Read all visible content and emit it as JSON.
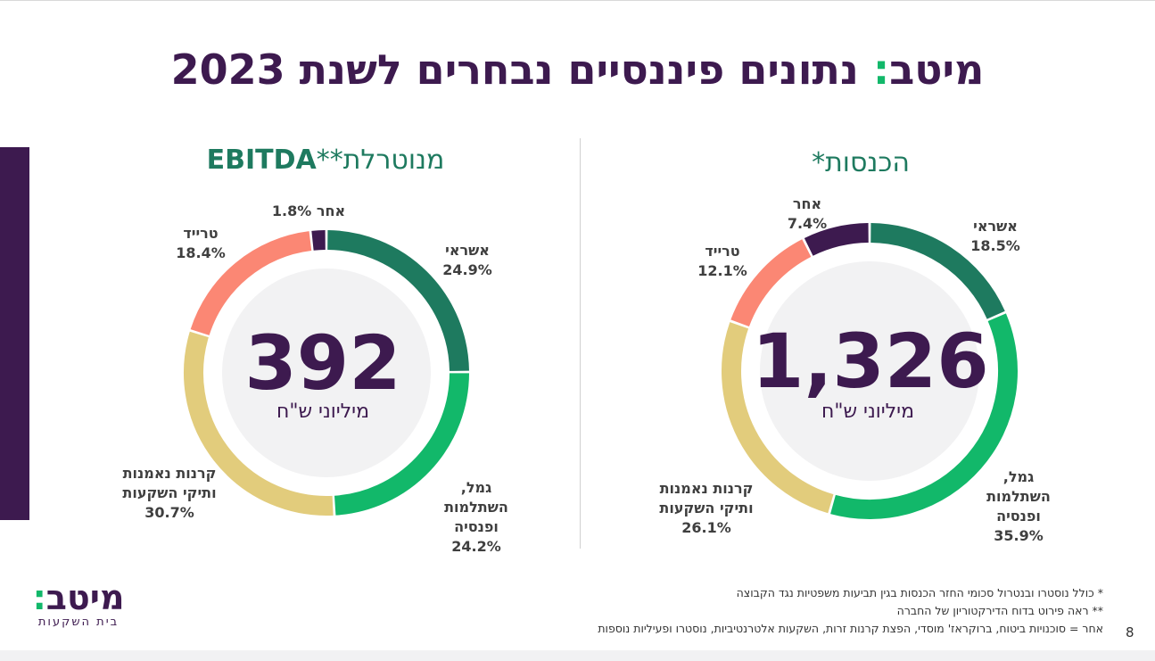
{
  "slide": {
    "title_brand": "מיטב",
    "title_colon": ":",
    "title_rest": " נתונים פיננסיים נבחרים לשנת 2023",
    "page_number": "8"
  },
  "colors": {
    "brand_purple": "#3d1a4f",
    "brand_green": "#12b86a",
    "title_green": "#1e7a5f"
  },
  "logo": {
    "word": "מיטב",
    "colon": ":",
    "subtitle": "בית השקעות"
  },
  "footnotes": [
    "* כולל נוסטרו ובנטרול סכומי החזר הכנסות בגין תביעות משפטיות נגד הקבוצה",
    "** ראה פירוט בדוח הדירקטוריון של החברה",
    "אחר = סוכנויות ביטוח, ברוקראז' מוסדי, הפצת קרנות זרות, השקעות אלטרנטיביות, נוסטרו ופעיליות נוספות"
  ],
  "chart_data": [
    {
      "type": "pie",
      "variant": "donut",
      "title": "הכנסות*",
      "total_value": "1,326",
      "total_unit": "מיליוני ש\"ח",
      "series": [
        {
          "name": "אשראי",
          "pct_label": "18.5%",
          "value": 18.5,
          "color": "#1e7a5f"
        },
        {
          "name": "גמל, השתלמות ופנסיה",
          "pct_label": "35.9%",
          "value": 35.9,
          "color": "#12b86a"
        },
        {
          "name": "קרנות נאמנות ותיקי השקעות",
          "pct_label": "26.1%",
          "value": 26.1,
          "color": "#e2cc7c"
        },
        {
          "name": "טרייד",
          "pct_label": "12.1%",
          "value": 12.1,
          "color": "#fb8774"
        },
        {
          "name": "אחר",
          "pct_label": "7.4%",
          "value": 7.4,
          "color": "#3d1a4f"
        }
      ]
    },
    {
      "type": "pie",
      "variant": "donut",
      "title_bold": "EBITDA",
      "title_rest": " מנוטרלת**",
      "total_value": "392",
      "total_unit": "מיליוני ש\"ח",
      "series": [
        {
          "name": "אשראי",
          "pct_label": "24.9%",
          "value": 24.9,
          "color": "#1e7a5f"
        },
        {
          "name": "גמל, השתלמות ופנסיה",
          "pct_label": "24.2%",
          "value": 24.2,
          "color": "#12b86a"
        },
        {
          "name": "קרנות נאמנות ותיקי השקעות",
          "pct_label": "30.7%",
          "value": 30.7,
          "color": "#e2cc7c"
        },
        {
          "name": "טרייד",
          "pct_label": "18.4%",
          "value": 18.4,
          "color": "#fb8774"
        },
        {
          "name": "אחר",
          "pct_label": "1.8%",
          "value": 1.8,
          "color": "#3d1a4f"
        }
      ]
    }
  ]
}
